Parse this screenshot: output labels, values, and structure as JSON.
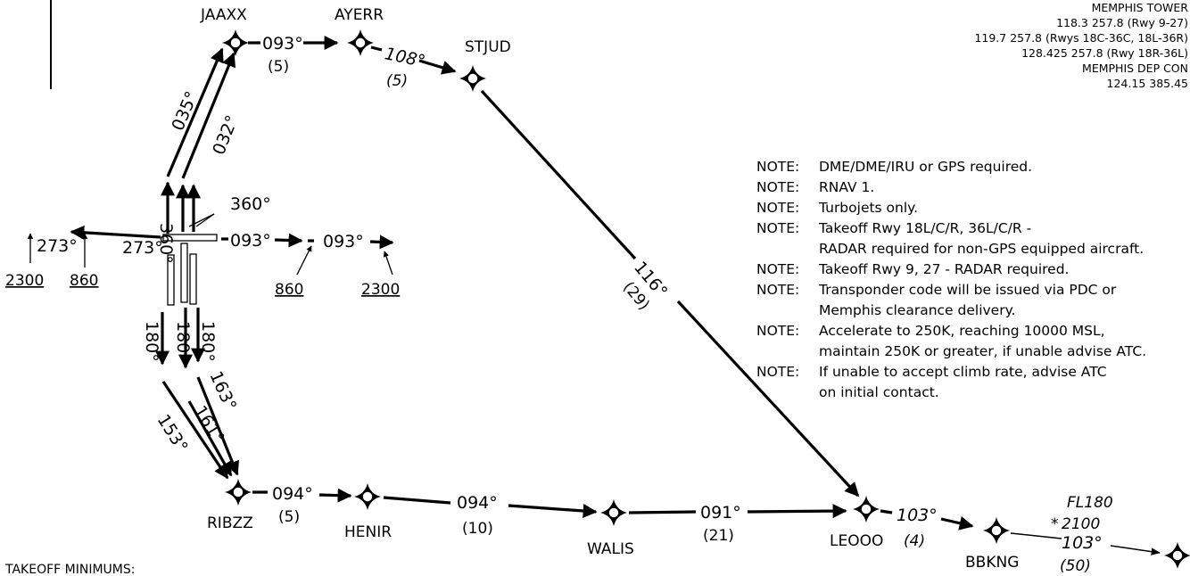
{
  "frequencies": {
    "tower_label": "MEMPHIS TOWER",
    "tower_lines": [
      "118.3  257.8 (Rwy 9-27)",
      "119.7  257.8 (Rwys 18C-36C, 18L-36R)",
      "128.425  257.8 (Rwy 18R-36L)"
    ],
    "departure_label": "MEMPHIS DEP CON",
    "departure_line": "124.15  385.45"
  },
  "notes": [
    {
      "prefix": "NOTE:",
      "lines": [
        "DME/DME/IRU or GPS required."
      ]
    },
    {
      "prefix": "NOTE:",
      "lines": [
        "RNAV 1."
      ]
    },
    {
      "prefix": "NOTE:",
      "lines": [
        "Turbojets only."
      ]
    },
    {
      "prefix": "NOTE:",
      "lines": [
        "Takeoff Rwy 18L/C/R, 36L/C/R -",
        "RADAR required for non-GPS equipped aircraft."
      ]
    },
    {
      "prefix": "NOTE:",
      "lines": [
        "Takeoff Rwy 9, 27 - RADAR required."
      ]
    },
    {
      "prefix": "NOTE:",
      "lines": [
        "Transponder code will be issued via PDC or",
        "Memphis clearance delivery."
      ]
    },
    {
      "prefix": "NOTE:",
      "lines": [
        "Accelerate to 250K, reaching 10000 MSL,",
        "maintain 250K or greater, if unable advise ATC."
      ]
    },
    {
      "prefix": "NOTE:",
      "lines": [
        "If unable to accept climb rate, advise ATC",
        "on initial contact."
      ]
    }
  ],
  "fixes": {
    "jaaxx": "JAAXX",
    "ayerr": "AYERR",
    "stjud": "STJUD",
    "ribzz": "RIBZZ",
    "henir": "HENIR",
    "walis": "WALIS",
    "leooo": "LEOOO",
    "bbkng": "BBKNG"
  },
  "legs": {
    "jaaxx_ayerr": {
      "course": "093°",
      "distance": "(5)"
    },
    "ayerr_stjud": {
      "course": "108°",
      "distance": "(5)"
    },
    "stjud_leooo": {
      "course": "116°",
      "distance": "(29)"
    },
    "ribzz_henir": {
      "course": "094°",
      "distance": "(5)"
    },
    "henir_walis": {
      "course": "094°",
      "distance": "(10)"
    },
    "walis_leooo": {
      "course": "091°",
      "distance": "(21)"
    },
    "leooo_bbkng": {
      "course": "103°",
      "distance": "(4)"
    },
    "bbkng_next": {
      "course": "103°",
      "distance": "(50)"
    }
  },
  "departure_courses": {
    "north_left": "360°",
    "north_center_right": "360°",
    "to_jaaxx_left": "035°",
    "to_jaaxx_right": "032°",
    "west_outer": "273°",
    "west_inner": "273°",
    "east_inner": "093°",
    "east_outer": "093°",
    "south_left": "180°",
    "south_center": "180°",
    "south_right": "180°",
    "to_ribzz_left": "153°",
    "to_ribzz_center": "161°",
    "to_ribzz_right": "163°"
  },
  "altitudes": {
    "west_outer": "2300",
    "west_inner": "860",
    "east_inner": "860",
    "east_outer": "2300"
  },
  "bbkng_restriction": {
    "upper": "FL180",
    "lower": "2100",
    "marker": "*"
  },
  "takeoff_minimums": "TAKEOFF MINIMUMS:"
}
